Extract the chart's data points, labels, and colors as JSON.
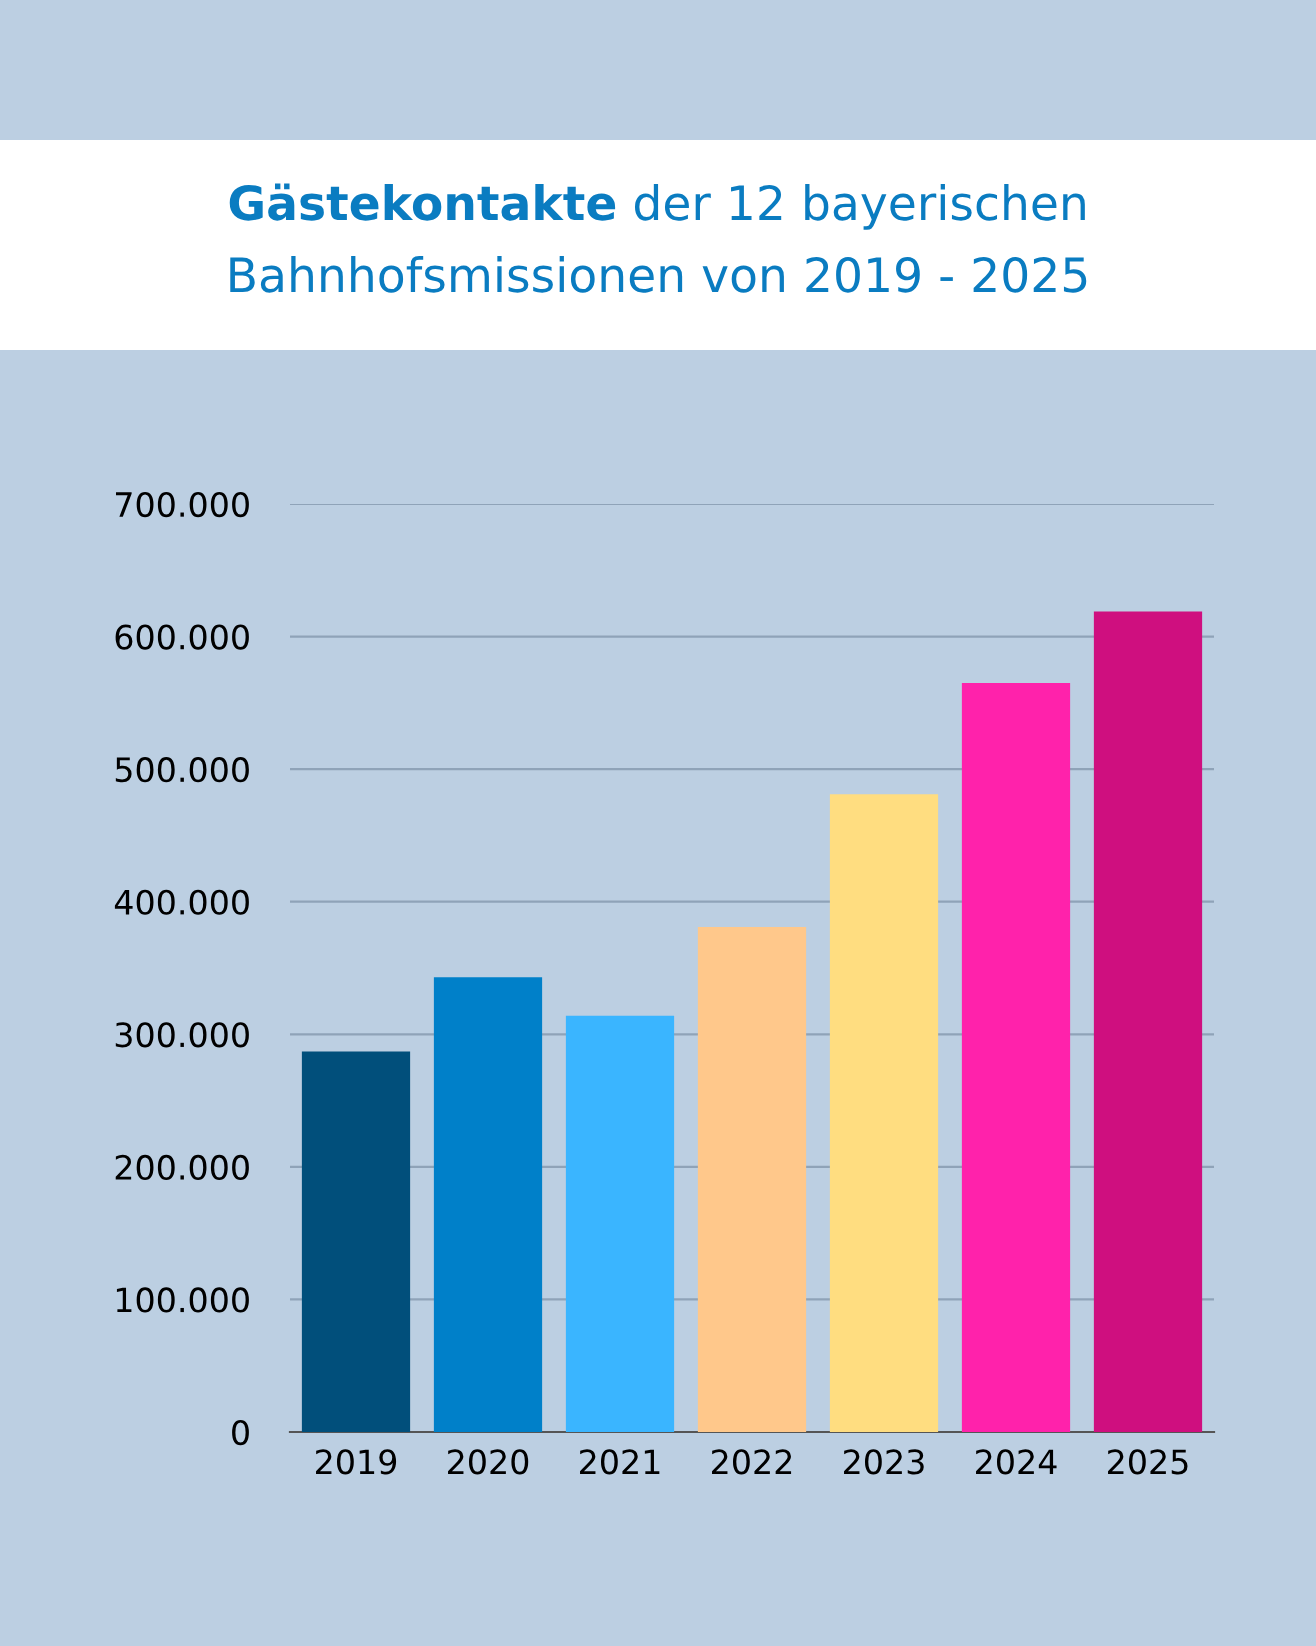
{
  "chart_data": {
    "type": "bar",
    "title": "Gästekontakte der 12 bayerischen Bahnhofsmissionen von 2019 - 2025",
    "categories": [
      "2019",
      "2020",
      "2021",
      "2022",
      "2023",
      "2024",
      "2025"
    ],
    "values": [
      287000,
      343000,
      314000,
      381000,
      481000,
      565000,
      619000
    ],
    "colors": [
      "#014f7b",
      "#0080c9",
      "#3ab5ff",
      "#ffc88b",
      "#ffdd80",
      "#ff22ab",
      "#cf0f7f"
    ],
    "ylim": [
      0,
      700000
    ],
    "yticks": [
      0,
      {
        "value": 100000,
        "label": "100.000"
      },
      {
        "value": 200000,
        "label": "200.000"
      },
      {
        "value": 300000,
        "label": "300.000"
      },
      {
        "value": 400000,
        "label": "400.000"
      },
      {
        "value": 500000,
        "label": "500.000"
      },
      {
        "value": 600000,
        "label": "600.000"
      },
      {
        "value": 700000,
        "label": "700.000"
      }
    ],
    "grid": "y"
  }
}
